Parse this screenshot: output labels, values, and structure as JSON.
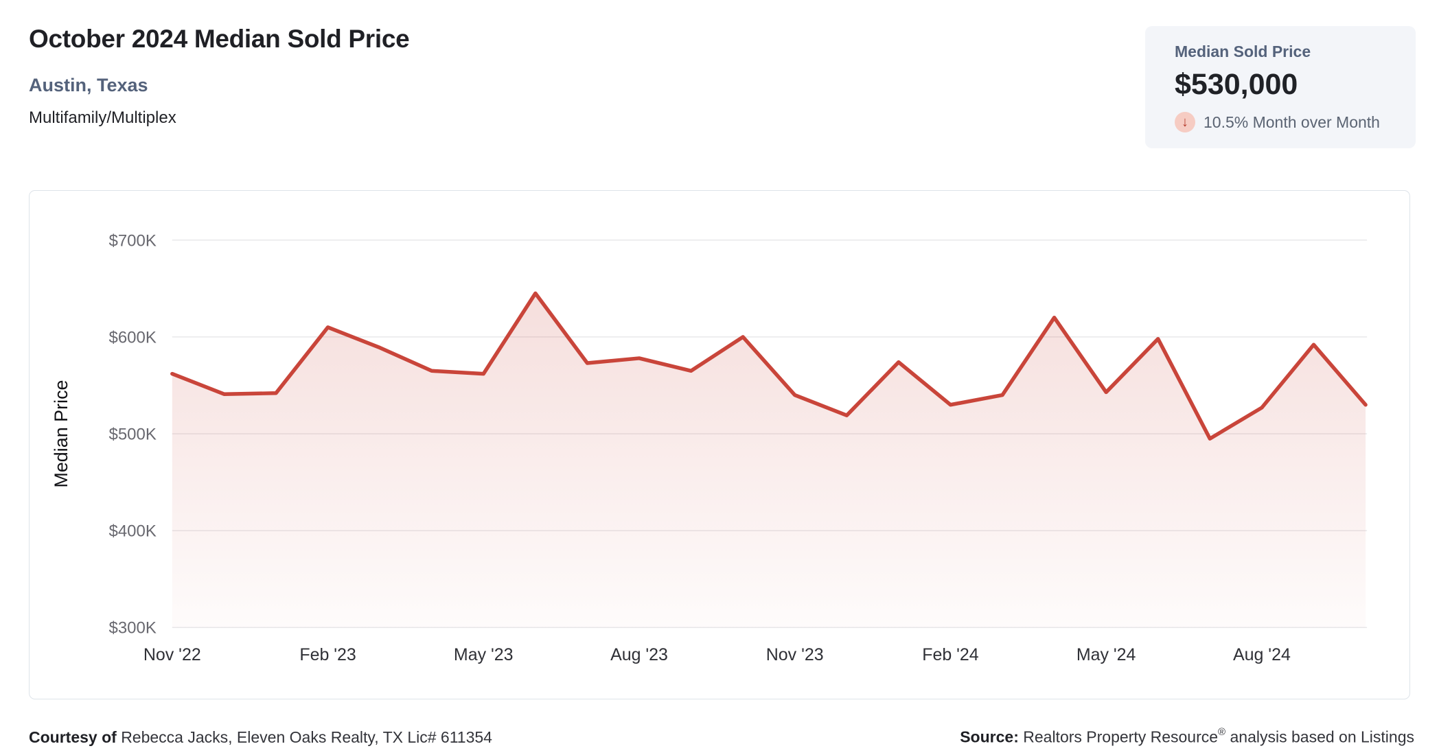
{
  "header": {
    "title": "October 2024 Median Sold Price",
    "location": "Austin, Texas",
    "property_type": "Multifamily/Multiplex"
  },
  "stat_card": {
    "label": "Median Sold Price",
    "value": "$530,000",
    "change_direction": "down",
    "change_text": "10.5% Month over Month"
  },
  "icons": {
    "change_arrow_glyph": "↓"
  },
  "chart_data": {
    "type": "area",
    "title": "",
    "xlabel": "",
    "ylabel": "Median Price",
    "y_unit": "USD",
    "grid": "horizontal",
    "legend": "none",
    "ylim": [
      300,
      700
    ],
    "categories": [
      "Nov '22",
      "Dec '22",
      "Jan '23",
      "Feb '23",
      "Mar '23",
      "Apr '23",
      "May '23",
      "Jun '23",
      "Jul '23",
      "Aug '23",
      "Sep '23",
      "Oct '23",
      "Nov '23",
      "Dec '23",
      "Jan '24",
      "Feb '24",
      "Mar '24",
      "Apr '24",
      "May '24",
      "Jun '24",
      "Jul '24",
      "Aug '24",
      "Sep '24",
      "Oct '24"
    ],
    "values": [
      562,
      541,
      542,
      610,
      589,
      565,
      562,
      645,
      573,
      578,
      565,
      600,
      540,
      519,
      574,
      530,
      540,
      620,
      543,
      598,
      495,
      527,
      592,
      530
    ],
    "values_unit": "thousand USD",
    "ytick_values": [
      300,
      400,
      500,
      600,
      700
    ],
    "ytick_labels": [
      "$300K",
      "$400K",
      "$500K",
      "$600K",
      "$700K"
    ],
    "xtick_indices": [
      0,
      3,
      6,
      9,
      12,
      15,
      18,
      21
    ]
  },
  "footer": {
    "courtesy_label": "Courtesy of",
    "courtesy_text": "Rebecca Jacks, Eleven Oaks Realty, TX Lic# 611354",
    "source_label": "Source:",
    "source_text_pre": "Realtors Property Resource",
    "source_registered": "®",
    "source_text_post": "analysis based on Listings"
  },
  "colors": {
    "accent_red_line": "#c9453a",
    "area_fill_top_opacity": 0.2,
    "area_fill_bottom_opacity": 0.02,
    "grid_line": "#e8e8ea",
    "card_border": "#dde3e9",
    "stat_card_bg": "#f3f5f9",
    "icon_circle_bg": "#f6ccc3",
    "icon_arrow": "#b53a2b",
    "slate_text": "#54627b",
    "dark_text": "#1f2025",
    "tick_gray": "#68686f"
  }
}
